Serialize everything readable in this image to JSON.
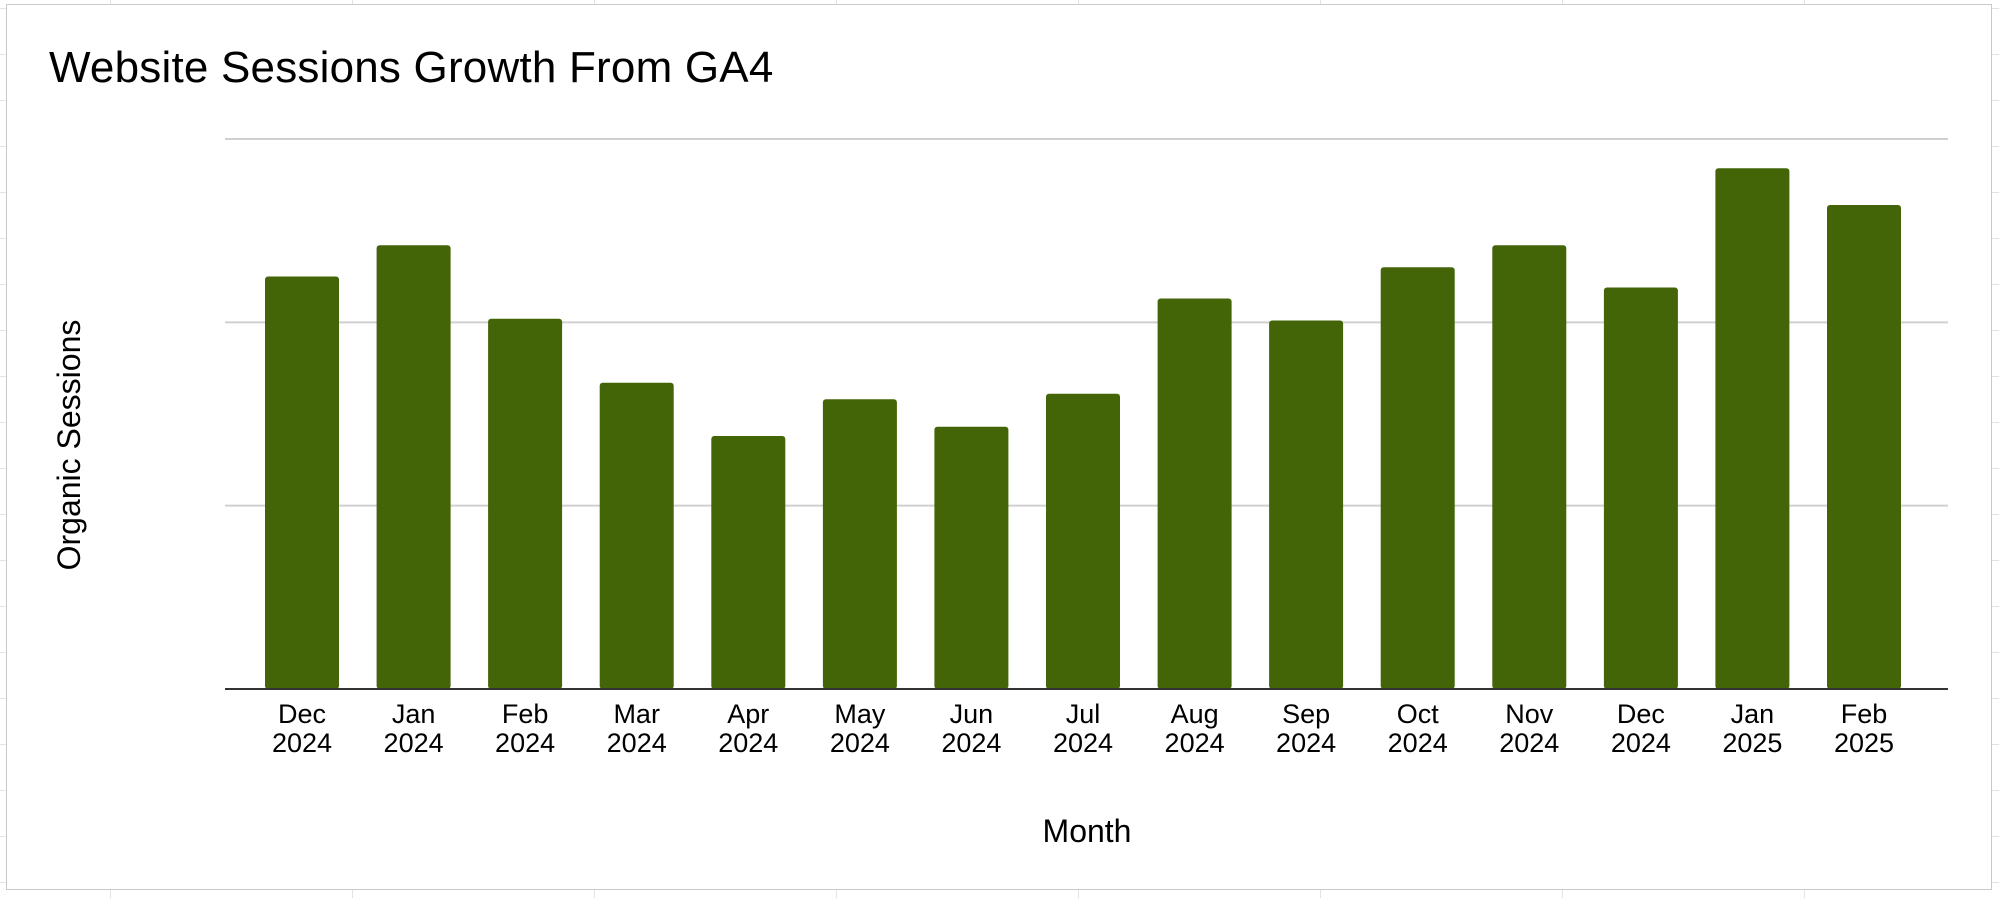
{
  "chart_data": {
    "type": "bar",
    "title": "Website Sessions Growth From GA4",
    "xlabel": "Month",
    "ylabel": "Organic Sessions",
    "categories": [
      [
        "Dec",
        "2024"
      ],
      [
        "Jan",
        "2024"
      ],
      [
        "Feb",
        "2024"
      ],
      [
        "Mar",
        "2024"
      ],
      [
        "Apr",
        "2024"
      ],
      [
        "May",
        "2024"
      ],
      [
        "Jun",
        "2024"
      ],
      [
        "Jul",
        "2024"
      ],
      [
        "Aug",
        "2024"
      ],
      [
        "Sep",
        "2024"
      ],
      [
        "Oct",
        "2024"
      ],
      [
        "Nov",
        "2024"
      ],
      [
        "Dec",
        "2024"
      ],
      [
        "Jan",
        "2025"
      ],
      [
        "Feb",
        "2025"
      ]
    ],
    "values": [
      2.25,
      2.42,
      2.02,
      1.67,
      1.38,
      1.58,
      1.43,
      1.61,
      2.13,
      2.01,
      2.3,
      2.42,
      2.19,
      2.84,
      2.64
    ],
    "ylim": [
      0,
      3
    ],
    "y_ticks": [
      0,
      1,
      2,
      3
    ],
    "y_tick_labels_visible": false,
    "grid": true,
    "legend": "none",
    "bar_color": "#436508",
    "grid_color": "#d0d0d0",
    "axis_color": "#333333"
  }
}
